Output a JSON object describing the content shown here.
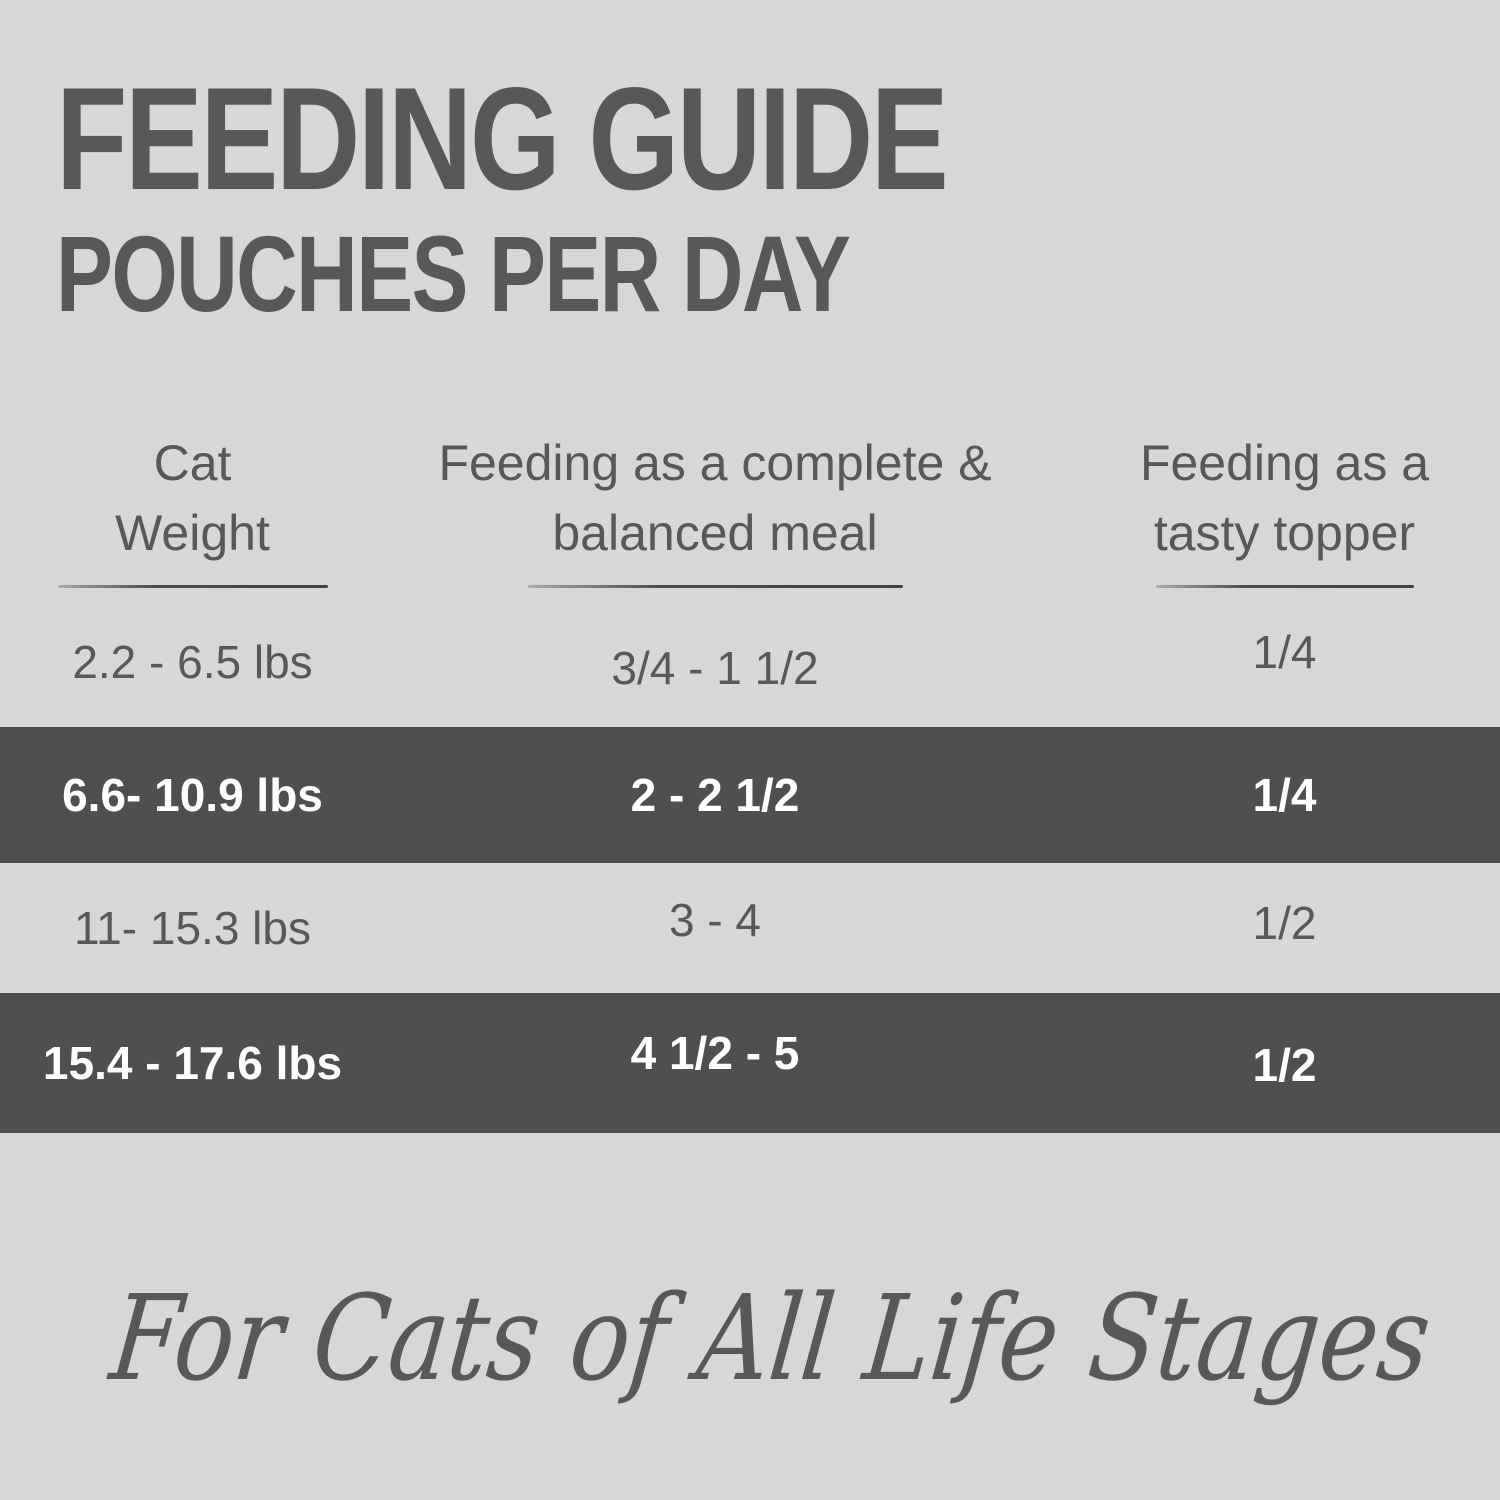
{
  "title": "FEEDING GUIDE",
  "subtitle": "POUCHES PER DAY",
  "table": {
    "columns": [
      {
        "line1": "Cat",
        "line2": "Weight"
      },
      {
        "line1": "Feeding as a complete &",
        "line2": "balanced meal"
      },
      {
        "line1": "Feeding as a",
        "line2": "tasty topper"
      }
    ],
    "rows": [
      {
        "weight": "2.2 - 6.5 lbs",
        "meal": "3/4 - 1 1/2",
        "topper": "1/4",
        "highlighted": false
      },
      {
        "weight": "6.6- 10.9 lbs",
        "meal": "2 - 2 1/2",
        "topper": "1/4",
        "highlighted": true
      },
      {
        "weight": "11- 15.3 lbs",
        "meal": "3 - 4",
        "topper": "1/2",
        "highlighted": false
      },
      {
        "weight": "15.4 - 17.6 lbs",
        "meal": "4 1/2 - 5",
        "topper": "1/2",
        "highlighted": true
      }
    ]
  },
  "footer": {
    "tagline": "For Cats of All Life Stages"
  },
  "colors": {
    "background": "#d5d7d8",
    "band_dark": "#4f4f51",
    "text_dark": "#58585a",
    "text_light": "#ffffff"
  }
}
